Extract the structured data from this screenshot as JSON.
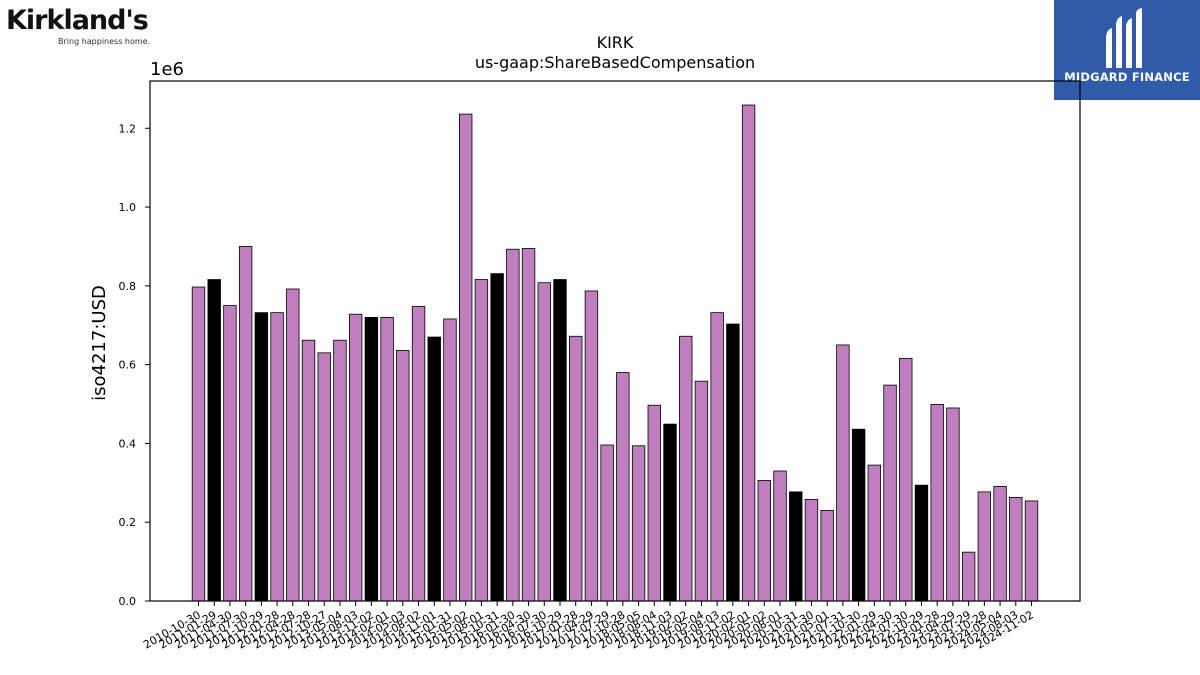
{
  "branding": {
    "left_brand": "Kirkland's",
    "left_tagline": "Bring happiness home.",
    "right_brand": "MIDGARD FINANCE"
  },
  "colors": {
    "bar_default": "#bf7fbf",
    "bar_highlight": "#000000",
    "bar_edge": "#000000",
    "right_logo_bg": "#2f5ba8"
  },
  "chart_data": {
    "type": "bar",
    "title": "KIRK",
    "subtitle": "us-gaap:ShareBasedCompensation",
    "xlabel": "",
    "ylabel": "iso4217:USD",
    "y_offset_label": "1e6",
    "ylim": [
      0,
      1.32
    ],
    "yticks": [
      0.0,
      0.2,
      0.4,
      0.6,
      0.8,
      1.0,
      1.2
    ],
    "ytick_labels": [
      "0.0",
      "0.2",
      "0.4",
      "0.6",
      "0.8",
      "1.0",
      "1.2"
    ],
    "grid": false,
    "categories": [
      "2010-10-30",
      "2011-01-29",
      "2011-04-30",
      "2011-07-30",
      "2011-10-29",
      "2012-01-28",
      "2012-04-28",
      "2012-07-28",
      "2012-10-27",
      "2013-05-04",
      "2013-08-03",
      "2013-11-02",
      "2014-02-01",
      "2014-05-03",
      "2014-08-02",
      "2014-11-01",
      "2015-01-31",
      "2015-05-02",
      "2015-08-01",
      "2015-10-31",
      "2016-01-30",
      "2016-04-30",
      "2016-07-30",
      "2016-10-29",
      "2017-01-28",
      "2017-04-29",
      "2017-07-29",
      "2017-10-28",
      "2018-05-05",
      "2018-08-04",
      "2018-11-03",
      "2019-02-02",
      "2019-05-04",
      "2019-08-03",
      "2019-11-02",
      "2020-02-01",
      "2020-05-02",
      "2020-08-01",
      "2020-10-31",
      "2021-01-30",
      "2021-05-01",
      "2021-07-31",
      "2021-10-30",
      "2022-01-29",
      "2022-04-30",
      "2022-07-30",
      "2022-10-29",
      "2023-01-28",
      "2023-04-29",
      "2023-07-29",
      "2023-10-28",
      "2024-05-04",
      "2024-08-03",
      "2024-11-02"
    ],
    "values": [
      0.797,
      0.816,
      0.75,
      0.9,
      0.732,
      0.732,
      0.792,
      0.662,
      0.63,
      0.662,
      0.728,
      0.72,
      0.72,
      0.636,
      0.748,
      0.67,
      0.716,
      1.236,
      0.816,
      0.831,
      0.893,
      0.895,
      0.808,
      0.816,
      0.672,
      0.787,
      0.396,
      0.58,
      0.394,
      0.497,
      0.449,
      0.672,
      0.558,
      0.732,
      0.703,
      1.259,
      0.306,
      0.33,
      0.277,
      0.258,
      0.23,
      0.65,
      0.436,
      0.345,
      0.548,
      0.616,
      0.294,
      0.499,
      0.49,
      0.124,
      0.277,
      0.291,
      0.263,
      0.254
    ],
    "highlighted": [
      "2011-01-29",
      "2011-10-29",
      "2013-11-02",
      "2014-11-01",
      "2015-10-31",
      "2016-10-29",
      "2018-11-03",
      "2019-11-02",
      "2020-10-31",
      "2021-10-30",
      "2022-10-29"
    ]
  }
}
